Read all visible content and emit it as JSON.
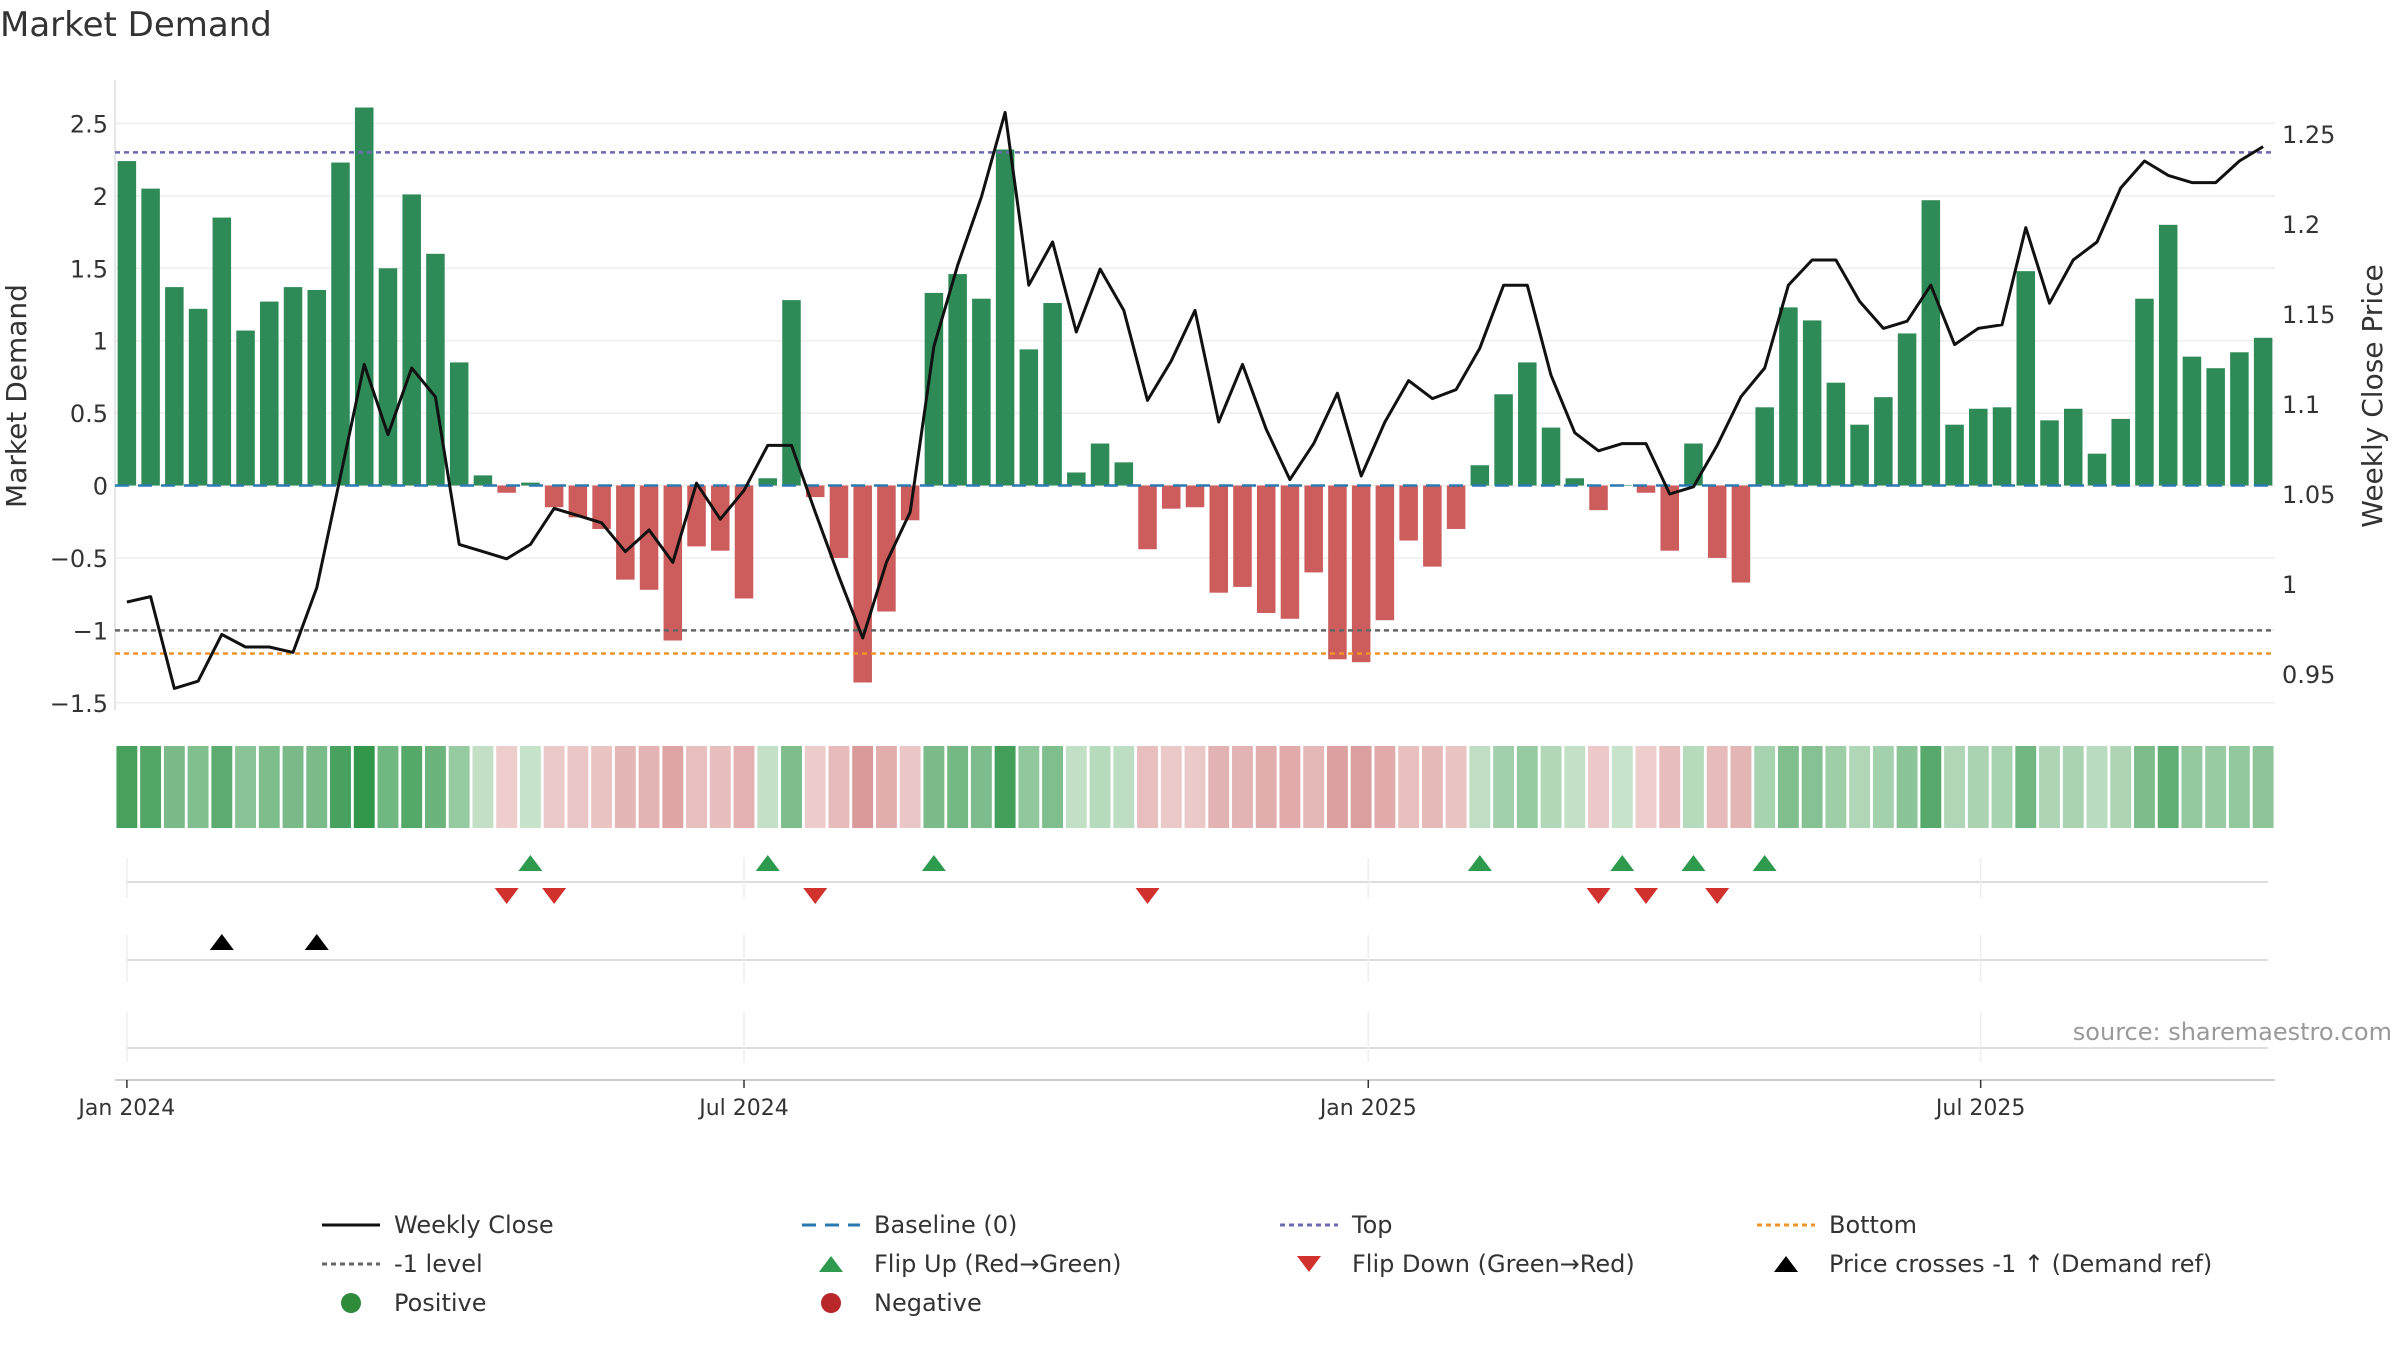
{
  "chart_data": {
    "type": "bar",
    "title": "Market Demand",
    "ylabel": "Market Demand",
    "y2label": "Weekly Close Price",
    "source": "source: sharemaestro.com",
    "ylim": [
      -1.55,
      2.8
    ],
    "y2lim": [
      0.93,
      1.28
    ],
    "yticks": [
      2.5,
      2,
      1.5,
      1,
      0.5,
      0,
      -0.5,
      -1,
      -1.5
    ],
    "ytick_labels": [
      "2.5",
      "2",
      "1.5",
      "1",
      "0.5",
      "0",
      "−0.5",
      "−1",
      "−1.5"
    ],
    "y2ticks": [
      1.25,
      1.2,
      1.15,
      1.1,
      1.05,
      1,
      0.95
    ],
    "y2tick_labels": [
      "1.25",
      "1.2",
      "1.15",
      "1.1",
      "1.05",
      "1",
      "0.95"
    ],
    "x_ticks": [
      {
        "label": "Jan 2024",
        "week": 0
      },
      {
        "label": "Jul 2024",
        "week": 26
      },
      {
        "label": "Jan 2025",
        "week": 52.3
      },
      {
        "label": "Jul 2025",
        "week": 78.1
      }
    ],
    "reference_lines": {
      "top": 2.3,
      "bottom": -1.16,
      "minus_one": -1,
      "baseline": 0
    },
    "demand": [
      2.24,
      2.05,
      1.37,
      1.22,
      1.85,
      1.07,
      1.27,
      1.37,
      1.35,
      2.23,
      2.61,
      1.5,
      2.01,
      1.6,
      0.85,
      0.07,
      -0.05,
      0.02,
      -0.15,
      -0.22,
      -0.3,
      -0.65,
      -0.72,
      -1.07,
      -0.42,
      -0.45,
      -0.78,
      0.05,
      1.28,
      -0.08,
      -0.5,
      -1.36,
      -0.87,
      -0.24,
      1.33,
      1.46,
      1.29,
      2.32,
      0.94,
      1.26,
      0.09,
      0.29,
      0.16,
      -0.44,
      -0.16,
      -0.15,
      -0.74,
      -0.7,
      -0.88,
      -0.92,
      -0.6,
      -1.2,
      -1.22,
      -0.93,
      -0.38,
      -0.56,
      -0.3,
      0.14,
      0.63,
      0.85,
      0.4,
      0.05,
      -0.17,
      0.0,
      -0.05,
      -0.45,
      0.29,
      -0.5,
      -0.67,
      0.54,
      1.23,
      1.14,
      0.71,
      0.42,
      0.61,
      1.05,
      1.97,
      0.42,
      0.53,
      0.54,
      1.48,
      0.45,
      0.53,
      0.22,
      0.46,
      1.29,
      1.8,
      0.89,
      0.81,
      0.92,
      1.02
    ],
    "price": [
      0.99,
      0.993,
      0.942,
      0.946,
      0.972,
      0.965,
      0.965,
      0.962,
      0.998,
      1.06,
      1.122,
      1.083,
      1.12,
      1.104,
      1.022,
      1.018,
      1.014,
      1.022,
      1.042,
      1.038,
      1.034,
      1.018,
      1.03,
      1.012,
      1.056,
      1.036,
      1.052,
      1.077,
      1.077,
      1.04,
      1.004,
      0.97,
      1.012,
      1.04,
      1.132,
      1.177,
      1.215,
      1.262,
      1.166,
      1.19,
      1.14,
      1.175,
      1.152,
      1.102,
      1.124,
      1.152,
      1.09,
      1.122,
      1.086,
      1.058,
      1.078,
      1.106,
      1.06,
      1.09,
      1.113,
      1.103,
      1.108,
      1.131,
      1.166,
      1.166,
      1.116,
      1.084,
      1.074,
      1.078,
      1.078,
      1.05,
      1.054,
      1.077,
      1.104,
      1.12,
      1.166,
      1.18,
      1.18,
      1.157,
      1.142,
      1.146,
      1.166,
      1.133,
      1.142,
      1.144,
      1.198,
      1.156,
      1.18,
      1.19,
      1.22,
      1.235,
      1.227,
      1.223,
      1.223,
      1.235,
      1.243
    ],
    "flip_up_weeks": [
      17,
      27,
      34,
      57,
      63,
      66,
      69
    ],
    "flip_down_weeks": [
      16,
      18,
      29,
      43,
      62,
      64,
      67
    ],
    "price_cross_weeks": [
      4,
      8
    ],
    "timeline_weeks": 91
  },
  "legend": [
    {
      "label": "Weekly Close",
      "kind": "line-solid",
      "color": "#111111"
    },
    {
      "label": "Baseline (0)",
      "kind": "line-dashed",
      "color": "#2a7ab0"
    },
    {
      "label": "Top",
      "kind": "line-dotted",
      "color": "#6c6ab0"
    },
    {
      "label": "Bottom",
      "kind": "line-dotted",
      "color": "#f0942a"
    },
    {
      "label": "-1 level",
      "kind": "line-dotted",
      "color": "#666666"
    },
    {
      "label": "Flip Up (Red→Green)",
      "kind": "triangle-up",
      "color": "#2e9a4e"
    },
    {
      "label": "Flip Down (Green→Red)",
      "kind": "triangle-down",
      "color": "#d2322d"
    },
    {
      "label": "Price crosses -1 ↑ (Demand ref)",
      "kind": "triangle-up",
      "color": "#000000"
    },
    {
      "label": "Positive",
      "kind": "dot",
      "color": "#2e8b3a"
    },
    {
      "label": "Negative",
      "kind": "dot",
      "color": "#b8282b"
    }
  ],
  "colors": {
    "positive_bar": "#2e8b57",
    "negative_bar": "#cd5c5c",
    "price_line": "#111111",
    "baseline": "#2a7ab0",
    "top": "#6c6ab0",
    "bottom": "#f0942a",
    "minus_one": "#666666",
    "flip_up": "#2e9a4e",
    "flip_down": "#d2322d",
    "price_cross": "#000000"
  }
}
